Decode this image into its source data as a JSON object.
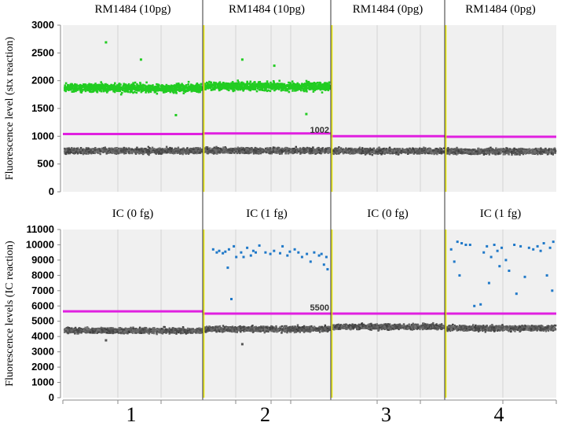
{
  "colors": {
    "plot_bg": "#f0f0f0",
    "positive_stx": "#22cc22",
    "positive_ic": "#1f78c8",
    "negative": "#555555",
    "threshold": "#e020e0",
    "well_divider": "#e6e600"
  },
  "x_axis": {
    "tick_labels": [
      "1",
      "2",
      "3",
      "4"
    ]
  },
  "chart_data": [
    {
      "type": "scatter",
      "ylabel": "Fluorescence level (stx reaction)",
      "ylim": [
        0,
        3000
      ],
      "yticks": [
        0,
        500,
        1000,
        1500,
        2000,
        2500,
        3000
      ],
      "grid": "vertical only",
      "wells": [
        {
          "label": "RM1484 (10pg)",
          "threshold": 1040,
          "positive_count": 900,
          "positive_mean": 1870,
          "positive_spread": 230,
          "negative_mean": 740,
          "negative_spread": 150,
          "outliers": [
            2690,
            2380,
            1380
          ]
        },
        {
          "label": "RM1484 (10pg)",
          "threshold": 1050,
          "positive_count": 900,
          "positive_mean": 1900,
          "positive_spread": 230,
          "negative_mean": 745,
          "negative_spread": 150,
          "outliers": [
            2380,
            2270,
            1400
          ]
        },
        {
          "label": "RM1484 (0pg)",
          "threshold": 1002,
          "threshold_label": "1002",
          "positive_count": 0,
          "positive_mean": 0,
          "positive_spread": 0,
          "negative_mean": 735,
          "negative_spread": 150,
          "outliers": []
        },
        {
          "label": "RM1484 (0pg)",
          "threshold": 990,
          "positive_count": 0,
          "positive_mean": 0,
          "positive_spread": 0,
          "negative_mean": 730,
          "negative_spread": 150,
          "outliers": []
        }
      ]
    },
    {
      "type": "scatter",
      "ylabel": "Fluorescence levels (IC reaction)",
      "ylim": [
        0,
        11000
      ],
      "yticks": [
        0,
        1000,
        2000,
        3000,
        4000,
        5000,
        6000,
        7000,
        8000,
        9000,
        10000,
        11000
      ],
      "grid": "vertical only",
      "wells": [
        {
          "label": "IC (0 fg)",
          "threshold": 5650,
          "positive_points": [],
          "negative_mean": 4400,
          "negative_spread": 520,
          "outliers": [
            3750
          ]
        },
        {
          "label": "IC (1 fg)",
          "threshold": 5500,
          "positive_points": [
            [
              0.05,
              9700
            ],
            [
              0.08,
              9500
            ],
            [
              0.1,
              9600
            ],
            [
              0.13,
              9450
            ],
            [
              0.15,
              9550
            ],
            [
              0.17,
              8500
            ],
            [
              0.18,
              9700
            ],
            [
              0.2,
              6450
            ],
            [
              0.22,
              9900
            ],
            [
              0.24,
              9200
            ],
            [
              0.28,
              9500
            ],
            [
              0.3,
              9200
            ],
            [
              0.33,
              9800
            ],
            [
              0.36,
              9300
            ],
            [
              0.38,
              9600
            ],
            [
              0.4,
              9500
            ],
            [
              0.43,
              9950
            ],
            [
              0.48,
              9500
            ],
            [
              0.52,
              9400
            ],
            [
              0.55,
              9600
            ],
            [
              0.6,
              9450
            ],
            [
              0.62,
              9900
            ],
            [
              0.66,
              9300
            ],
            [
              0.68,
              9550
            ],
            [
              0.72,
              9700
            ],
            [
              0.75,
              9500
            ],
            [
              0.78,
              9200
            ],
            [
              0.82,
              9400
            ],
            [
              0.85,
              8900
            ],
            [
              0.88,
              9500
            ],
            [
              0.92,
              9300
            ],
            [
              0.94,
              9400
            ],
            [
              0.96,
              8700
            ],
            [
              0.98,
              9200
            ],
            [
              0.99,
              8400
            ]
          ],
          "negative_mean": 4500,
          "negative_spread": 520,
          "outliers": [
            3500
          ]
        },
        {
          "label": "IC (0 fg)",
          "threshold": 5500,
          "threshold_label": "5500",
          "positive_points": [],
          "negative_mean": 4650,
          "negative_spread": 500,
          "outliers": []
        },
        {
          "label": "IC (1 fg)",
          "threshold": 5500,
          "positive_points": [
            [
              0.02,
              9700
            ],
            [
              0.05,
              8900
            ],
            [
              0.08,
              10200
            ],
            [
              0.1,
              8000
            ],
            [
              0.12,
              10100
            ],
            [
              0.16,
              10000
            ],
            [
              0.2,
              10000
            ],
            [
              0.24,
              6000
            ],
            [
              0.3,
              6100
            ],
            [
              0.33,
              9500
            ],
            [
              0.36,
              9900
            ],
            [
              0.38,
              7500
            ],
            [
              0.4,
              9200
            ],
            [
              0.43,
              10000
            ],
            [
              0.46,
              9600
            ],
            [
              0.48,
              8600
            ],
            [
              0.5,
              9800
            ],
            [
              0.54,
              9000
            ],
            [
              0.57,
              8300
            ],
            [
              0.62,
              10000
            ],
            [
              0.64,
              6800
            ],
            [
              0.68,
              9900
            ],
            [
              0.72,
              7900
            ],
            [
              0.76,
              9800
            ],
            [
              0.8,
              9700
            ],
            [
              0.84,
              9900
            ],
            [
              0.87,
              9600
            ],
            [
              0.9,
              10100
            ],
            [
              0.93,
              8000
            ],
            [
              0.96,
              9800
            ],
            [
              0.98,
              7000
            ],
            [
              0.99,
              10200
            ]
          ],
          "negative_mean": 4550,
          "negative_spread": 520,
          "outliers": []
        }
      ]
    }
  ]
}
